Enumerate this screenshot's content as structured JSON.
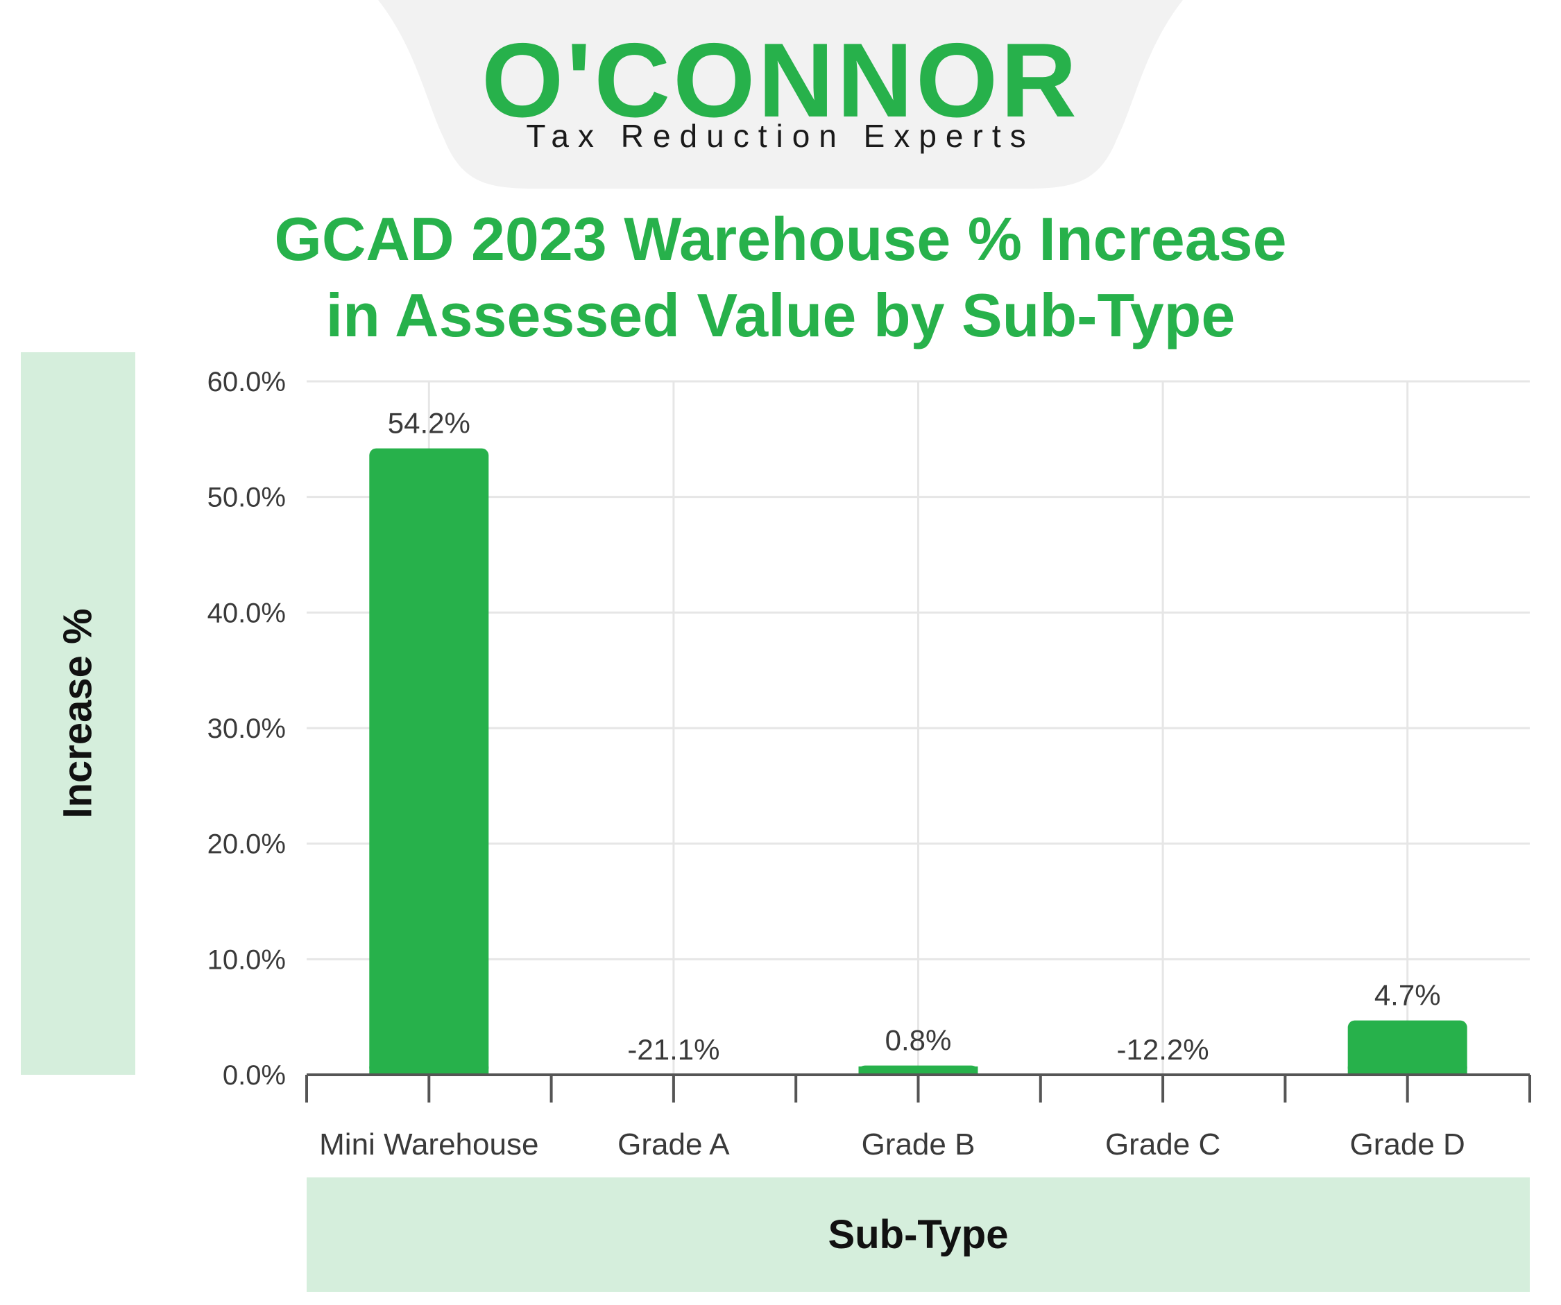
{
  "brand": {
    "name": "O'CONNOR",
    "tagline": "Tax Reduction Experts",
    "logo_color": "#27b14b"
  },
  "colors": {
    "bar": "#27b14b",
    "title": "#27b14b",
    "band": "#d5eedc",
    "grid": "#e6e6e6",
    "axis": "#555555"
  },
  "chart_data": {
    "type": "bar",
    "title": "GCAD 2023 Warehouse % Increase in Assessed Value by Sub-Type",
    "title_lines": [
      "GCAD 2023 Warehouse % Increase",
      "in Assessed Value by Sub-Type"
    ],
    "xlabel": "Sub-Type",
    "ylabel": "Increase %",
    "categories": [
      "Mini Warehouse",
      "Grade A",
      "Grade B",
      "Grade C",
      "Grade D"
    ],
    "values": [
      54.2,
      -21.1,
      0.8,
      -12.2,
      4.7
    ],
    "data_labels": [
      "54.2%",
      "-21.1%",
      "0.8%",
      "-12.2%",
      "4.7%"
    ],
    "ylim": [
      0,
      60
    ],
    "yticks": [
      0,
      10,
      20,
      30,
      40,
      50,
      60
    ],
    "ytick_labels": [
      "0.0%",
      "10.0%",
      "20.0%",
      "30.0%",
      "40.0%",
      "50.0%",
      "60.0%"
    ],
    "grid": true,
    "legend": "none"
  }
}
